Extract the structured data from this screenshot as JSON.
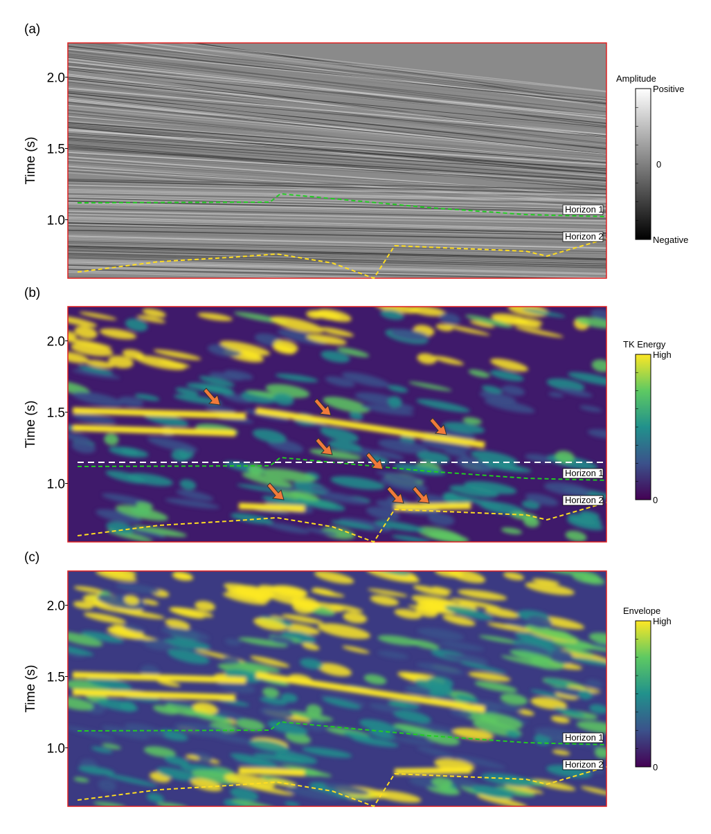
{
  "chart_data": [
    {
      "type": "heatmap",
      "panel_label": "(a)",
      "y_label": "Time (s)",
      "ylim": [
        0.59,
        2.24
      ],
      "yticks": [
        {
          "value": 1,
          "label": "1.0"
        },
        1.5,
        {
          "value": 2,
          "label": "2.0"
        }
      ],
      "colorbar": {
        "title": "Amplitude",
        "labels": [
          "Positive",
          "0",
          "Negative"
        ],
        "colors": [
          "#ffffff",
          "#808080",
          "#000000"
        ]
      },
      "annotations": [
        "Horizon 1",
        "Horizon 2"
      ]
    },
    {
      "type": "heatmap",
      "panel_label": "(b)",
      "y_label": "Time (s)",
      "ylim": [
        0.59,
        2.24
      ],
      "yticks": [
        {
          "value": 1,
          "label": "1.0"
        },
        1.5,
        {
          "value": 2,
          "label": "2.0"
        }
      ],
      "colorbar": {
        "title": "TK Energy",
        "labels": [
          "High",
          "0"
        ],
        "colors": [
          "#fde725",
          "#5ec962",
          "#21918c",
          "#3b528b",
          "#440154"
        ]
      },
      "annotations": [
        "Horizon 1",
        "Horizon 2"
      ]
    },
    {
      "type": "heatmap",
      "panel_label": "(c)",
      "y_label": "Time (s)",
      "ylim": [
        0.59,
        2.24
      ],
      "yticks": [
        {
          "value": 1,
          "label": "1.0"
        },
        1.5,
        {
          "value": 2,
          "label": "2.0"
        }
      ],
      "colorbar": {
        "title": "Envelope",
        "labels": [
          "High",
          "0"
        ],
        "colors": [
          "#fde725",
          "#5ec962",
          "#21918c",
          "#3b528b",
          "#440154"
        ]
      },
      "annotations": [
        "Horizon 1",
        "Horizon 2"
      ]
    }
  ]
}
